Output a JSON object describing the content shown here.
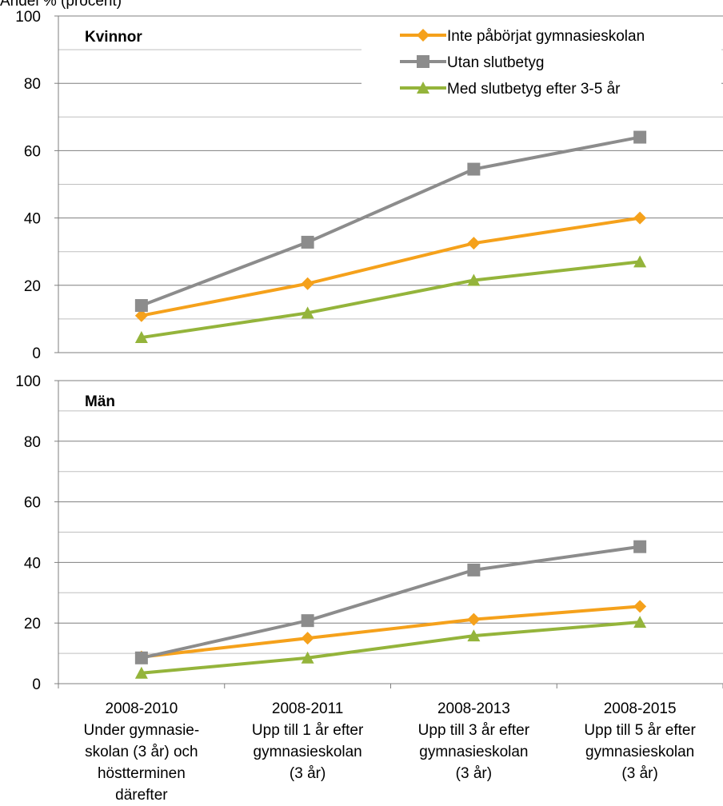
{
  "chart_data": {
    "type": "line",
    "ylabel": "Andel % (procent)",
    "ylim": [
      0,
      100
    ],
    "yticks": [
      0,
      20,
      40,
      60,
      80,
      100
    ],
    "grid": true,
    "legend_position": "top-right",
    "categories": [
      [
        "2008-2010",
        "Under gymnasie-",
        "skolan (3 år) och",
        "höstterminen",
        "därefter"
      ],
      [
        "2008-2011",
        "Upp till 1 år efter",
        "gymnasieskolan",
        "(3 år)"
      ],
      [
        "2008-2013",
        "Upp till 3 år efter",
        "gymnasieskolan",
        "(3 år)"
      ],
      [
        "2008-2015",
        "Upp till 5 år efter",
        "gymnasieskolan",
        "(3 år)"
      ]
    ],
    "series_styles": [
      {
        "name": "Inte påbörjat gymnasieskolan",
        "color": "#F5A11B",
        "marker": "diamond"
      },
      {
        "name": "Utan slutbetyg",
        "color": "#8C8C8C",
        "marker": "square"
      },
      {
        "name": "Med slutbetyg efter 3-5 år",
        "color": "#94B43B",
        "marker": "triangle"
      }
    ],
    "panels": [
      {
        "title": "Kvinnor",
        "series": [
          {
            "name": "Inte påbörjat gymnasieskolan",
            "values": [
              11,
              20.5,
              32.5,
              40
            ]
          },
          {
            "name": "Utan slutbetyg",
            "values": [
              14,
              32.8,
              54.5,
              64
            ]
          },
          {
            "name": "Med slutbetyg efter 3-5 år",
            "values": [
              4.5,
              11.8,
              21.5,
              27
            ]
          }
        ]
      },
      {
        "title": "Män",
        "series": [
          {
            "name": "Inte påbörjat gymnasieskolan",
            "values": [
              8.8,
              15,
              21.2,
              25.5
            ]
          },
          {
            "name": "Utan slutbetyg",
            "values": [
              8.5,
              20.8,
              37.5,
              45.2
            ]
          },
          {
            "name": "Med slutbetyg efter 3-5 år",
            "values": [
              3.5,
              8.5,
              15.8,
              20.3
            ]
          }
        ]
      }
    ]
  }
}
